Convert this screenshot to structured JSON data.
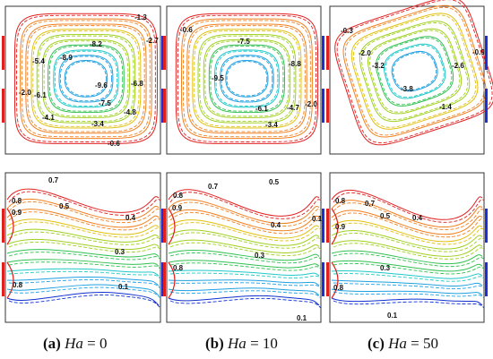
{
  "top_panels": [
    {
      "id": "a",
      "labels": [
        "-1.3",
        "-2.7",
        "-8.2",
        "-5.4",
        "-8.9",
        "-9.6",
        "-6.8",
        "-6.1",
        "-2.0",
        "-7.5",
        "-4.8",
        "-4.1",
        "-3.4",
        "-0.6"
      ]
    },
    {
      "id": "b",
      "labels": [
        "-0.6",
        "-7.5",
        "-8.8",
        "-9.5",
        "-6.1",
        "-4.7",
        "-2.0",
        "-3.4"
      ]
    },
    {
      "id": "c",
      "labels": [
        "-0.3",
        "-2.0",
        "-3.2",
        "-0.9",
        "-2.6",
        "-3.8",
        "-1.4"
      ]
    }
  ],
  "bottom_panels": [
    {
      "id": "a",
      "labels": [
        "0.7",
        "0.8",
        "0.9",
        "0.5",
        "0.4",
        "0.3",
        "0.1",
        "0.8"
      ]
    },
    {
      "id": "b",
      "labels": [
        "0.8",
        "0.7",
        "0.5",
        "0.9",
        "0.4",
        "0.1",
        "0.3",
        "0.8",
        "0.1"
      ]
    },
    {
      "id": "c",
      "labels": [
        "0.8",
        "0.9",
        "0.7",
        "0.5",
        "0.4",
        "0.3",
        "0.8",
        "0.1"
      ]
    }
  ],
  "captions": [
    {
      "tag": "(a)",
      "var": "Ha",
      "rest": " = 0"
    },
    {
      "tag": "(b)",
      "var": "Ha",
      "rest": " = 10"
    },
    {
      "tag": "(c)",
      "var": "Ha",
      "rest": " = 50"
    }
  ],
  "colors": {
    "heater": "#e0201c",
    "cooler": "#1f2fd6",
    "frame": "#333333",
    "contour_scale": [
      "#1030d0",
      "#1fa0e0",
      "#20c8c8",
      "#30c050",
      "#a0d020",
      "#e0c010",
      "#f08020",
      "#e02020"
    ]
  }
}
